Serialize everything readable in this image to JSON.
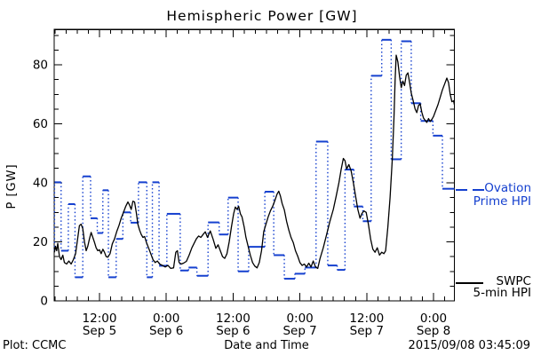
{
  "title": "Hemispheric Power [GW]",
  "footer": {
    "left": "Plot: CCMC",
    "center": "Date and Time",
    "right": "2015/09/08 03:45:09"
  },
  "chart_data": {
    "type": "line",
    "title": "Hemispheric Power [GW]",
    "xlabel": "Date and Time",
    "ylabel": "P [GW]",
    "x_unit": "hours since 2015-09-05 00:00 UT",
    "x_range": [
      3.86,
      75.75
    ],
    "y_range": [
      0,
      92
    ],
    "y_major_ticks": [
      0,
      20,
      40,
      60,
      80
    ],
    "y_minor_step": 5,
    "x_minor_step_hours": 2,
    "x_major_every_hours": 12,
    "grid": false,
    "legend_position": "right",
    "colors": {
      "swpc": "#000000",
      "ovation": "#1540cf"
    },
    "x_major_ticks": [
      {
        "hour": 12,
        "time": "12:00",
        "date": "Sep 5"
      },
      {
        "hour": 24,
        "time": "0:00",
        "date": "Sep 6"
      },
      {
        "hour": 36,
        "time": "12:00",
        "date": "Sep 6"
      },
      {
        "hour": 48,
        "time": "0:00",
        "date": "Sep 7"
      },
      {
        "hour": 60,
        "time": "12:00",
        "date": "Sep 7"
      },
      {
        "hour": 72,
        "time": "0:00",
        "date": "Sep 8"
      }
    ],
    "legend": [
      {
        "name": "Ovation Prime HPI",
        "label_lines": [
          "Ovation",
          "Prime HPI"
        ],
        "color": "#1540cf",
        "marker": "dashed"
      },
      {
        "name": "SWPC 5-min HPI",
        "label_lines": [
          "SWPC",
          "5-min HPI"
        ],
        "color": "#000000",
        "marker": "solid"
      }
    ],
    "series": [
      {
        "name": "SWPC 5-min HPI",
        "type": "line",
        "color": "#000000",
        "points": [
          [
            3.9,
            16.5
          ],
          [
            4.1,
            18.5
          ],
          [
            4.3,
            17.0
          ],
          [
            4.5,
            19.5
          ],
          [
            4.8,
            15.0
          ],
          [
            5.1,
            14.0
          ],
          [
            5.4,
            15.5
          ],
          [
            5.7,
            13.0
          ],
          [
            6.1,
            12.5
          ],
          [
            6.5,
            13.5
          ],
          [
            6.9,
            12.5
          ],
          [
            7.3,
            14.0
          ],
          [
            7.7,
            16.0
          ],
          [
            8.1,
            21.5
          ],
          [
            8.4,
            25.5
          ],
          [
            8.7,
            26.0
          ],
          [
            9.0,
            24.5
          ],
          [
            9.3,
            20.0
          ],
          [
            9.6,
            17.0
          ],
          [
            9.9,
            18.5
          ],
          [
            10.2,
            21.0
          ],
          [
            10.5,
            23.2
          ],
          [
            10.8,
            21.5
          ],
          [
            11.1,
            19.8
          ],
          [
            11.4,
            18.0
          ],
          [
            11.7,
            17.0
          ],
          [
            12.0,
            17.3
          ],
          [
            12.3,
            16.0
          ],
          [
            12.6,
            17.5
          ],
          [
            12.9,
            16.5
          ],
          [
            13.2,
            15.0
          ],
          [
            13.5,
            14.8
          ],
          [
            13.9,
            16.0
          ],
          [
            14.3,
            19.3
          ],
          [
            14.7,
            21.0
          ],
          [
            15.1,
            23.5
          ],
          [
            15.5,
            25.5
          ],
          [
            15.9,
            28.0
          ],
          [
            16.3,
            30.0
          ],
          [
            16.7,
            32.0
          ],
          [
            17.1,
            33.5
          ],
          [
            17.4,
            32.5
          ],
          [
            17.7,
            31.0
          ],
          [
            18.0,
            33.8
          ],
          [
            18.3,
            33.5
          ],
          [
            18.6,
            30.0
          ],
          [
            18.9,
            26.0
          ],
          [
            19.2,
            24.0
          ],
          [
            19.5,
            22.5
          ],
          [
            19.8,
            21.5
          ],
          [
            20.1,
            21.8
          ],
          [
            20.4,
            20.0
          ],
          [
            20.8,
            18.0
          ],
          [
            21.2,
            16.0
          ],
          [
            21.6,
            14.0
          ],
          [
            22.0,
            13.0
          ],
          [
            22.4,
            13.5
          ],
          [
            22.8,
            12.5
          ],
          [
            23.3,
            12.0
          ],
          [
            23.8,
            11.5
          ],
          [
            24.3,
            12.0
          ],
          [
            24.8,
            11.0
          ],
          [
            25.3,
            11.2
          ],
          [
            25.7,
            16.5
          ],
          [
            26.0,
            17.0
          ],
          [
            26.3,
            13.0
          ],
          [
            26.7,
            12.5
          ],
          [
            27.1,
            12.8
          ],
          [
            27.6,
            13.4
          ],
          [
            28.1,
            15.5
          ],
          [
            28.6,
            18.0
          ],
          [
            29.0,
            19.5
          ],
          [
            29.4,
            21.0
          ],
          [
            29.8,
            22.0
          ],
          [
            30.2,
            21.5
          ],
          [
            30.6,
            22.5
          ],
          [
            31.0,
            23.4
          ],
          [
            31.4,
            21.5
          ],
          [
            31.9,
            23.7
          ],
          [
            32.4,
            21.0
          ],
          [
            32.9,
            17.8
          ],
          [
            33.3,
            19.0
          ],
          [
            33.7,
            17.0
          ],
          [
            34.1,
            15.0
          ],
          [
            34.5,
            14.4
          ],
          [
            34.9,
            16.0
          ],
          [
            35.3,
            20.0
          ],
          [
            35.7,
            25.0
          ],
          [
            36.1,
            29.5
          ],
          [
            36.4,
            31.8
          ],
          [
            36.7,
            31.0
          ],
          [
            37.0,
            32.0
          ],
          [
            37.3,
            29.5
          ],
          [
            37.6,
            28.5
          ],
          [
            38.0,
            25.0
          ],
          [
            38.3,
            21.6
          ],
          [
            38.7,
            18.5
          ],
          [
            39.1,
            15.5
          ],
          [
            39.5,
            13.0
          ],
          [
            39.9,
            11.8
          ],
          [
            40.3,
            11.2
          ],
          [
            40.7,
            13.0
          ],
          [
            41.1,
            17.0
          ],
          [
            41.5,
            23.5
          ],
          [
            41.9,
            26.0
          ],
          [
            42.3,
            28.5
          ],
          [
            42.7,
            30.5
          ],
          [
            43.1,
            32.0
          ],
          [
            43.5,
            34.0
          ],
          [
            43.9,
            36.2
          ],
          [
            44.2,
            37.2
          ],
          [
            44.5,
            35.5
          ],
          [
            44.8,
            33.0
          ],
          [
            45.2,
            30.8
          ],
          [
            45.6,
            27.0
          ],
          [
            46.0,
            24.0
          ],
          [
            46.4,
            21.5
          ],
          [
            46.8,
            19.8
          ],
          [
            47.2,
            17.0
          ],
          [
            47.6,
            15.2
          ],
          [
            48.0,
            13.0
          ],
          [
            48.4,
            12.0
          ],
          [
            48.8,
            12.5
          ],
          [
            49.2,
            11.5
          ],
          [
            49.6,
            12.8
          ],
          [
            50.0,
            11.5
          ],
          [
            50.4,
            13.5
          ],
          [
            50.8,
            11.5
          ],
          [
            51.2,
            11.0
          ],
          [
            51.6,
            14.3
          ],
          [
            52.2,
            18.0
          ],
          [
            52.8,
            22.5
          ],
          [
            53.4,
            27.0
          ],
          [
            54.0,
            31.0
          ],
          [
            54.5,
            35.3
          ],
          [
            55.0,
            40.0
          ],
          [
            55.4,
            44.5
          ],
          [
            55.8,
            48.3
          ],
          [
            56.1,
            47.5
          ],
          [
            56.4,
            44.7
          ],
          [
            56.8,
            46.2
          ],
          [
            57.2,
            44.0
          ],
          [
            57.6,
            40.0
          ],
          [
            58.0,
            35.5
          ],
          [
            58.4,
            31.0
          ],
          [
            58.8,
            28.0
          ],
          [
            59.1,
            29.5
          ],
          [
            59.5,
            30.5
          ],
          [
            59.9,
            30.0
          ],
          [
            60.3,
            26.0
          ],
          [
            60.7,
            21.0
          ],
          [
            61.1,
            17.5
          ],
          [
            61.5,
            16.5
          ],
          [
            61.9,
            18.0
          ],
          [
            62.3,
            15.5
          ],
          [
            62.7,
            16.5
          ],
          [
            63.1,
            16.0
          ],
          [
            63.4,
            17.0
          ],
          [
            63.8,
            25.0
          ],
          [
            64.2,
            35.0
          ],
          [
            64.6,
            48.0
          ],
          [
            64.9,
            62.0
          ],
          [
            65.1,
            75.0
          ],
          [
            65.3,
            83.3
          ],
          [
            65.6,
            81.0
          ],
          [
            65.9,
            76.0
          ],
          [
            66.2,
            72.3
          ],
          [
            66.5,
            74.5
          ],
          [
            66.8,
            73.0
          ],
          [
            67.1,
            76.5
          ],
          [
            67.4,
            77.3
          ],
          [
            67.7,
            74.0
          ],
          [
            68.0,
            70.5
          ],
          [
            68.3,
            68.2
          ],
          [
            68.7,
            65.0
          ],
          [
            69.0,
            63.8
          ],
          [
            69.3,
            66.2
          ],
          [
            69.6,
            66.8
          ],
          [
            69.9,
            64.0
          ],
          [
            70.2,
            62.0
          ],
          [
            70.5,
            61.2
          ],
          [
            70.8,
            60.5
          ],
          [
            71.1,
            61.8
          ],
          [
            71.4,
            60.8
          ],
          [
            71.7,
            61.5
          ],
          [
            72.0,
            62.5
          ],
          [
            72.4,
            64.5
          ],
          [
            72.8,
            66.5
          ],
          [
            73.2,
            69.0
          ],
          [
            73.6,
            71.5
          ],
          [
            74.0,
            73.5
          ],
          [
            74.4,
            75.5
          ],
          [
            74.7,
            74.0
          ],
          [
            75.0,
            70.0
          ],
          [
            75.3,
            67.5
          ],
          [
            75.6,
            67.8
          ],
          [
            75.75,
            66.5
          ]
        ]
      },
      {
        "name": "Ovation Prime HPI",
        "type": "steps",
        "color": "#1540cf",
        "steps": [
          [
            3.86,
            3.92,
            17.0
          ],
          [
            3.92,
            5.1,
            40.2
          ],
          [
            5.1,
            6.4,
            17.0
          ],
          [
            6.4,
            7.6,
            32.8
          ],
          [
            7.6,
            9.0,
            8.0
          ],
          [
            9.0,
            10.4,
            42.2
          ],
          [
            10.4,
            11.6,
            28.0
          ],
          [
            11.6,
            12.6,
            23.0
          ],
          [
            12.6,
            13.6,
            37.5
          ],
          [
            13.6,
            15.0,
            8.0
          ],
          [
            15.0,
            16.2,
            21.0
          ],
          [
            16.2,
            17.6,
            30.0
          ],
          [
            17.6,
            19.0,
            26.5
          ],
          [
            19.0,
            20.5,
            40.2
          ],
          [
            20.5,
            21.5,
            8.0
          ],
          [
            21.5,
            22.7,
            40.2
          ],
          [
            22.7,
            24.1,
            11.9
          ],
          [
            24.1,
            26.5,
            29.5
          ],
          [
            26.5,
            28.0,
            10.3
          ],
          [
            28.0,
            29.5,
            11.3
          ],
          [
            29.5,
            31.5,
            8.5
          ],
          [
            31.5,
            33.5,
            26.6
          ],
          [
            33.5,
            35.1,
            22.5
          ],
          [
            35.1,
            36.9,
            35.0
          ],
          [
            36.9,
            38.8,
            10.0
          ],
          [
            38.8,
            41.7,
            18.3
          ],
          [
            41.7,
            43.3,
            37.0
          ],
          [
            43.3,
            45.2,
            15.5
          ],
          [
            45.2,
            47.1,
            7.5
          ],
          [
            47.1,
            48.9,
            9.2
          ],
          [
            48.9,
            50.9,
            11.3
          ],
          [
            50.9,
            53.0,
            54.0
          ],
          [
            53.0,
            54.7,
            12.0
          ],
          [
            54.7,
            56.1,
            10.5
          ],
          [
            56.1,
            57.7,
            44.5
          ],
          [
            57.7,
            59.3,
            32.0
          ],
          [
            59.3,
            60.8,
            27.0
          ],
          [
            60.8,
            62.7,
            76.3
          ],
          [
            62.7,
            64.4,
            88.5
          ],
          [
            64.4,
            66.2,
            48.0
          ],
          [
            66.2,
            68.0,
            88.0
          ],
          [
            68.0,
            69.7,
            67.0
          ],
          [
            69.7,
            71.9,
            61.0
          ],
          [
            71.9,
            73.6,
            56.0
          ],
          [
            73.6,
            75.75,
            38.0
          ]
        ]
      }
    ]
  }
}
